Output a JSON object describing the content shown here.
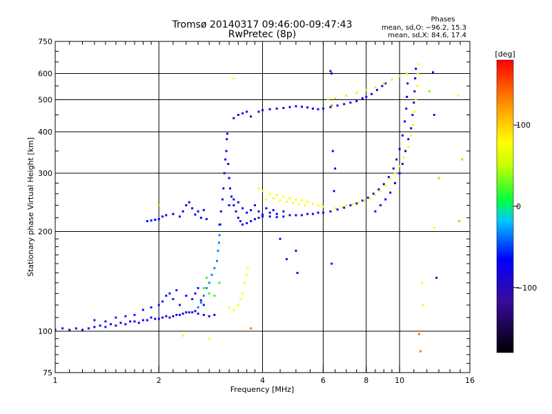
{
  "chart_data": {
    "type": "scatter",
    "title": "Tromsø 20140317 09:46:00-09:47:43",
    "subtitle": "RwPretec (8p)",
    "xlabel": "Frequency [MHz]",
    "ylabel": "Stationary phase Virtual Height [km]",
    "xscale": "log",
    "yscale": "log",
    "xlim": [
      1,
      16
    ],
    "ylim": [
      75,
      750
    ],
    "xticks": [
      1,
      2,
      4,
      6,
      8,
      10,
      16
    ],
    "xticklabels": [
      "1",
      "2",
      "4",
      "6",
      "8",
      "10",
      "16"
    ],
    "xgrid": [
      2,
      4,
      6,
      8,
      10
    ],
    "yticks": [
      75,
      100,
      200,
      300,
      400,
      500,
      600,
      750
    ],
    "yticklabels": [
      "75",
      "100",
      "200",
      "300",
      "400",
      "500",
      "600",
      "750"
    ],
    "ygrid": [
      100,
      200,
      300,
      400,
      500,
      600
    ],
    "grid": true,
    "info": {
      "heading": "Phases",
      "line_o": "mean, sd,O: −96.2, 15.3",
      "line_x": "mean, sd,X: 84.6, 17.4"
    },
    "colorbar": {
      "label": "[deg]",
      "min": -180,
      "max": 180,
      "ticks": [
        100,
        0,
        -100
      ],
      "ticklabels": [
        "100",
        "0",
        "−100"
      ]
    },
    "series": [
      {
        "phase": -110,
        "points": [
          [
            1.0,
            101
          ],
          [
            1.05,
            102
          ],
          [
            1.1,
            101
          ],
          [
            1.15,
            102
          ],
          [
            1.2,
            101
          ],
          [
            1.25,
            102
          ],
          [
            1.3,
            103
          ],
          [
            1.35,
            104
          ],
          [
            1.4,
            103
          ],
          [
            1.45,
            105
          ],
          [
            1.5,
            104
          ],
          [
            1.55,
            106
          ],
          [
            1.6,
            105
          ],
          [
            1.65,
            107
          ],
          [
            1.7,
            107
          ],
          [
            1.75,
            106
          ],
          [
            1.8,
            108
          ],
          [
            1.85,
            108
          ],
          [
            1.9,
            110
          ],
          [
            1.95,
            109
          ],
          [
            2.0,
            109
          ],
          [
            2.05,
            110
          ],
          [
            2.1,
            111
          ],
          [
            2.15,
            110
          ],
          [
            2.2,
            111
          ],
          [
            2.25,
            112
          ],
          [
            2.3,
            112
          ],
          [
            2.35,
            113
          ],
          [
            2.4,
            114
          ],
          [
            2.45,
            114
          ],
          [
            2.5,
            114
          ],
          [
            2.55,
            115
          ],
          [
            2.6,
            113
          ],
          [
            2.7,
            112
          ],
          [
            2.8,
            111
          ],
          [
            2.9,
            112
          ]
        ]
      },
      {
        "phase": -95,
        "points": [
          [
            1.3,
            108
          ],
          [
            1.4,
            107
          ],
          [
            1.5,
            110
          ],
          [
            1.6,
            111
          ],
          [
            1.7,
            112
          ],
          [
            1.8,
            116
          ],
          [
            1.9,
            118
          ],
          [
            2.0,
            120
          ],
          [
            2.05,
            123
          ],
          [
            2.1,
            128
          ],
          [
            2.15,
            130
          ],
          [
            2.2,
            125
          ],
          [
            2.25,
            133
          ],
          [
            2.3,
            120
          ],
          [
            2.4,
            128
          ],
          [
            2.5,
            125
          ],
          [
            2.55,
            130
          ],
          [
            2.6,
            135
          ],
          [
            2.65,
            124
          ],
          [
            2.7,
            120
          ]
        ]
      },
      {
        "phase": -70,
        "points": [
          [
            2.6,
            118
          ],
          [
            2.65,
            122
          ],
          [
            2.7,
            128
          ],
          [
            2.75,
            135
          ],
          [
            2.8,
            140
          ],
          [
            2.85,
            148
          ],
          [
            2.9,
            155
          ],
          [
            2.95,
            163
          ],
          [
            2.97,
            175
          ],
          [
            2.99,
            185
          ],
          [
            3.0,
            195
          ],
          [
            3.02,
            210
          ]
        ]
      },
      {
        "phase": -110,
        "points": [
          [
            3.0,
            210
          ],
          [
            3.03,
            230
          ],
          [
            3.06,
            250
          ],
          [
            3.08,
            270
          ],
          [
            3.1,
            300
          ],
          [
            3.12,
            330
          ],
          [
            3.14,
            350
          ],
          [
            3.15,
            380
          ],
          [
            3.16,
            395
          ],
          [
            3.18,
            320
          ],
          [
            3.2,
            290
          ],
          [
            3.22,
            270
          ],
          [
            3.25,
            255
          ],
          [
            3.3,
            240
          ],
          [
            3.35,
            230
          ],
          [
            3.4,
            220
          ],
          [
            3.45,
            215
          ],
          [
            3.5,
            210
          ],
          [
            3.6,
            212
          ],
          [
            3.7,
            215
          ],
          [
            3.8,
            218
          ],
          [
            3.9,
            220
          ],
          [
            4.0,
            222
          ],
          [
            4.2,
            222
          ],
          [
            4.4,
            221
          ],
          [
            4.6,
            222
          ],
          [
            4.8,
            224
          ],
          [
            5.0,
            224
          ],
          [
            5.2,
            224
          ],
          [
            5.4,
            226
          ],
          [
            5.6,
            226
          ],
          [
            5.8,
            228
          ],
          [
            6.0,
            228
          ],
          [
            6.3,
            230
          ],
          [
            6.6,
            233
          ],
          [
            6.9,
            236
          ],
          [
            7.2,
            240
          ],
          [
            7.5,
            243
          ],
          [
            7.8,
            248
          ],
          [
            8.1,
            253
          ],
          [
            8.4,
            260
          ],
          [
            8.7,
            268
          ],
          [
            9.0,
            278
          ],
          [
            9.3,
            292
          ],
          [
            9.6,
            310
          ],
          [
            9.8,
            330
          ],
          [
            10.0,
            355
          ],
          [
            10.2,
            390
          ],
          [
            10.35,
            430
          ],
          [
            10.45,
            470
          ],
          [
            10.5,
            510
          ],
          [
            10.55,
            560
          ]
        ]
      },
      {
        "phase": -105,
        "points": [
          [
            3.2,
            240
          ],
          [
            3.3,
            250
          ],
          [
            3.4,
            245
          ],
          [
            3.5,
            235
          ],
          [
            3.6,
            228
          ],
          [
            3.7,
            232
          ],
          [
            3.8,
            240
          ],
          [
            3.9,
            230
          ],
          [
            4.0,
            225
          ],
          [
            4.1,
            235
          ],
          [
            4.2,
            228
          ],
          [
            4.3,
            232
          ],
          [
            4.4,
            226
          ],
          [
            4.6,
            230
          ]
        ]
      },
      {
        "phase": -100,
        "points": [
          [
            1.85,
            215
          ],
          [
            1.9,
            216
          ],
          [
            1.95,
            217
          ],
          [
            2.0,
            218
          ],
          [
            2.05,
            222
          ],
          [
            2.1,
            224
          ],
          [
            2.2,
            226
          ],
          [
            2.3,
            222
          ],
          [
            2.35,
            230
          ],
          [
            2.4,
            240
          ],
          [
            2.45,
            245
          ],
          [
            2.5,
            235
          ],
          [
            2.55,
            225
          ],
          [
            2.6,
            230
          ],
          [
            2.65,
            220
          ],
          [
            2.7,
            232
          ],
          [
            2.75,
            218
          ]
        ]
      },
      {
        "phase": -110,
        "points": [
          [
            3.3,
            440
          ],
          [
            3.4,
            450
          ],
          [
            3.5,
            455
          ],
          [
            3.6,
            460
          ],
          [
            3.7,
            445
          ],
          [
            3.9,
            460
          ],
          [
            4.0,
            465
          ],
          [
            4.2,
            468
          ],
          [
            4.4,
            470
          ],
          [
            4.6,
            472
          ],
          [
            4.8,
            475
          ],
          [
            5.0,
            478
          ],
          [
            5.2,
            476
          ],
          [
            5.4,
            474
          ],
          [
            5.6,
            470
          ],
          [
            5.8,
            468
          ],
          [
            6.0,
            470
          ],
          [
            6.3,
            475
          ],
          [
            6.6,
            480
          ],
          [
            6.9,
            485
          ],
          [
            7.2,
            490
          ],
          [
            7.5,
            495
          ],
          [
            7.8,
            505
          ],
          [
            8.0,
            510
          ],
          [
            8.3,
            520
          ],
          [
            8.6,
            535
          ],
          [
            8.9,
            550
          ],
          [
            9.1,
            560
          ]
        ]
      },
      {
        "phase": -100,
        "points": [
          [
            8.5,
            230
          ],
          [
            8.8,
            240
          ],
          [
            9.1,
            250
          ],
          [
            9.4,
            262
          ],
          [
            9.7,
            280
          ],
          [
            10.0,
            300
          ],
          [
            10.2,
            320
          ],
          [
            10.4,
            350
          ],
          [
            10.6,
            380
          ],
          [
            10.8,
            410
          ],
          [
            10.9,
            450
          ],
          [
            11.0,
            490
          ],
          [
            11.05,
            530
          ],
          [
            11.1,
            580
          ],
          [
            11.15,
            620
          ]
        ]
      },
      {
        "phase": 100,
        "points": [
          [
            3.9,
            270
          ],
          [
            4.0,
            265
          ],
          [
            4.2,
            260
          ],
          [
            4.4,
            258
          ],
          [
            4.6,
            255
          ],
          [
            4.8,
            252
          ],
          [
            5.0,
            250
          ],
          [
            5.2,
            248
          ],
          [
            5.4,
            246
          ],
          [
            5.6,
            242
          ],
          [
            5.8,
            240
          ],
          [
            6.0,
            238
          ],
          [
            4.1,
            250
          ],
          [
            4.3,
            252
          ],
          [
            4.5,
            248
          ],
          [
            4.7,
            246
          ],
          [
            4.9,
            244
          ],
          [
            5.1,
            242
          ],
          [
            5.3,
            240
          ]
        ]
      },
      {
        "phase": 95,
        "points": [
          [
            6.5,
            235
          ],
          [
            6.8,
            237
          ],
          [
            7.0,
            240
          ],
          [
            7.3,
            242
          ],
          [
            7.6,
            245
          ],
          [
            7.9,
            248
          ],
          [
            8.2,
            252
          ],
          [
            8.5,
            258
          ],
          [
            8.8,
            265
          ],
          [
            9.1,
            275
          ],
          [
            9.4,
            288
          ],
          [
            9.7,
            300
          ],
          [
            10.0,
            315
          ],
          [
            10.3,
            335
          ],
          [
            10.6,
            360
          ],
          [
            10.8,
            390
          ],
          [
            10.95,
            420
          ],
          [
            11.05,
            460
          ],
          [
            11.15,
            500
          ],
          [
            11.25,
            550
          ],
          [
            11.3,
            600
          ],
          [
            11.35,
            640
          ]
        ]
      },
      {
        "phase": 100,
        "points": [
          [
            3.2,
            118
          ],
          [
            3.3,
            116
          ],
          [
            3.4,
            120
          ],
          [
            3.45,
            125
          ],
          [
            3.5,
            130
          ],
          [
            3.55,
            140
          ],
          [
            3.6,
            148
          ],
          [
            3.62,
            155
          ]
        ]
      },
      {
        "phase": 75,
        "points": [
          [
            6.2,
            500
          ],
          [
            6.5,
            505
          ],
          [
            7.0,
            515
          ],
          [
            7.5,
            525
          ],
          [
            8.0,
            535
          ],
          [
            8.5,
            545
          ],
          [
            9.0,
            560
          ],
          [
            9.5,
            575
          ],
          [
            10.0,
            590
          ],
          [
            10.5,
            600
          ]
        ]
      },
      {
        "phase": 20,
        "points": [
          [
            2.7,
            135
          ],
          [
            2.8,
            130
          ],
          [
            2.9,
            128
          ],
          [
            3.0,
            140
          ],
          [
            2.75,
            145
          ]
        ]
      },
      {
        "phase": -130,
        "points": [
          [
            6.3,
            610
          ],
          [
            6.35,
            600
          ],
          [
            6.4,
            350
          ],
          [
            6.5,
            310
          ],
          [
            6.45,
            265
          ],
          [
            6.35,
            160
          ],
          [
            5.0,
            175
          ],
          [
            5.05,
            150
          ],
          [
            4.5,
            190
          ],
          [
            4.7,
            165
          ],
          [
            12.5,
            605
          ],
          [
            12.6,
            450
          ],
          [
            12.8,
            145
          ]
        ]
      },
      {
        "phase": 150,
        "points": [
          [
            6.35,
            480
          ],
          [
            11.5,
            87
          ],
          [
            11.4,
            98
          ],
          [
            3.7,
            102
          ]
        ]
      },
      {
        "phase": 95,
        "points": [
          [
            3.3,
            580
          ],
          [
            2.35,
            97
          ],
          [
            2.8,
            95
          ],
          [
            11.7,
            120
          ],
          [
            11.6,
            140
          ],
          [
            12.6,
            205
          ],
          [
            14.8,
            515
          ]
        ]
      },
      {
        "phase": 40,
        "points": [
          [
            12.2,
            530
          ],
          [
            13.0,
            290
          ],
          [
            15.2,
            330
          ],
          [
            14.9,
            215
          ],
          [
            2.0,
            240
          ]
        ]
      }
    ]
  }
}
